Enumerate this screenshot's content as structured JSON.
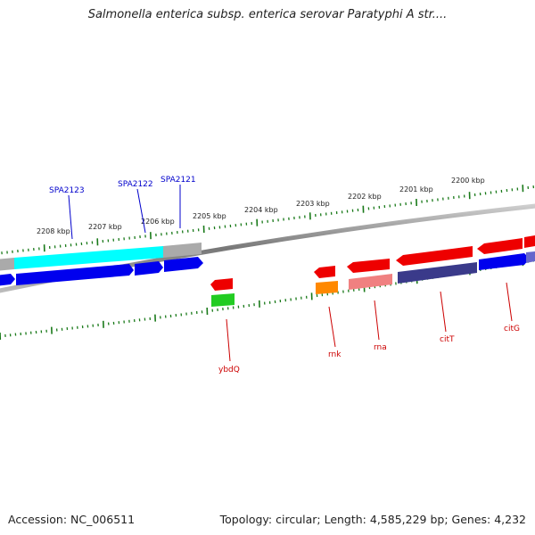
{
  "title": "Salmonella enterica subsp. enterica serovar Paratyphi A str....",
  "footer": {
    "accession": "Accession: NC_006511",
    "summary": "Topology: circular; Length: 4,585,229 bp; Genes: 4,232"
  },
  "colors": {
    "backbone": "#888888",
    "ticks": "#1a7a1a",
    "label_upper": "#0000cc",
    "label_lower": "#cc0000"
  },
  "scale_labels": [
    "2208 kbp",
    "2207 kbp",
    "2206 kbp",
    "2205 kbp",
    "2204 kbp",
    "2203 kbp",
    "2202 kbp",
    "2201 kbp",
    "2200 kbp"
  ],
  "upper_gene_labels": [
    "SPA2123",
    "SPA2122",
    "SPA2121"
  ],
  "lower_gene_labels": [
    "ybdQ",
    "rnk",
    "rna",
    "citT",
    "citG"
  ],
  "feature_colors": {
    "cyan": "#00ffff",
    "blue": "#0000ee",
    "grey": "#aaaaaa",
    "red": "#ee0000",
    "green": "#22cc22",
    "orange": "#ff8800",
    "pink": "#f08080",
    "navy": "#3a3a8a"
  }
}
